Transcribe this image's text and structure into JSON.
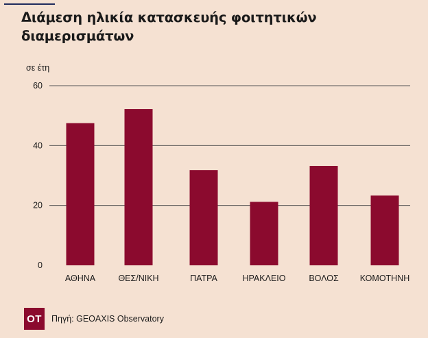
{
  "title": "Διάμεση ηλικία κατασκευής φοιτητικών διαμερισμάτων",
  "unit_label": "σε έτη",
  "logo_text": "OT",
  "source": "Πηγή: GEOAXIS Observatory",
  "colors": {
    "bar": "#8b0a2e",
    "background": "#f5e1d2",
    "grid": "#555555"
  },
  "chart_data": {
    "type": "bar",
    "categories": [
      "ΑΘΗΝΑ",
      "ΘΕΣ/ΝΙΚΗ",
      "ΠΑΤΡΑ",
      "ΗΡΑΚΛΕΙΟ",
      "ΒΟΛΟΣ",
      "ΚΟΜΟΤΗΝΗ"
    ],
    "values": [
      47.5,
      52.2,
      31.8,
      21.2,
      33.2,
      23.3
    ],
    "ylabel": "σε έτη",
    "ylim": [
      0,
      60
    ],
    "yticks": [
      0,
      20,
      40,
      60
    ],
    "grid": true
  }
}
